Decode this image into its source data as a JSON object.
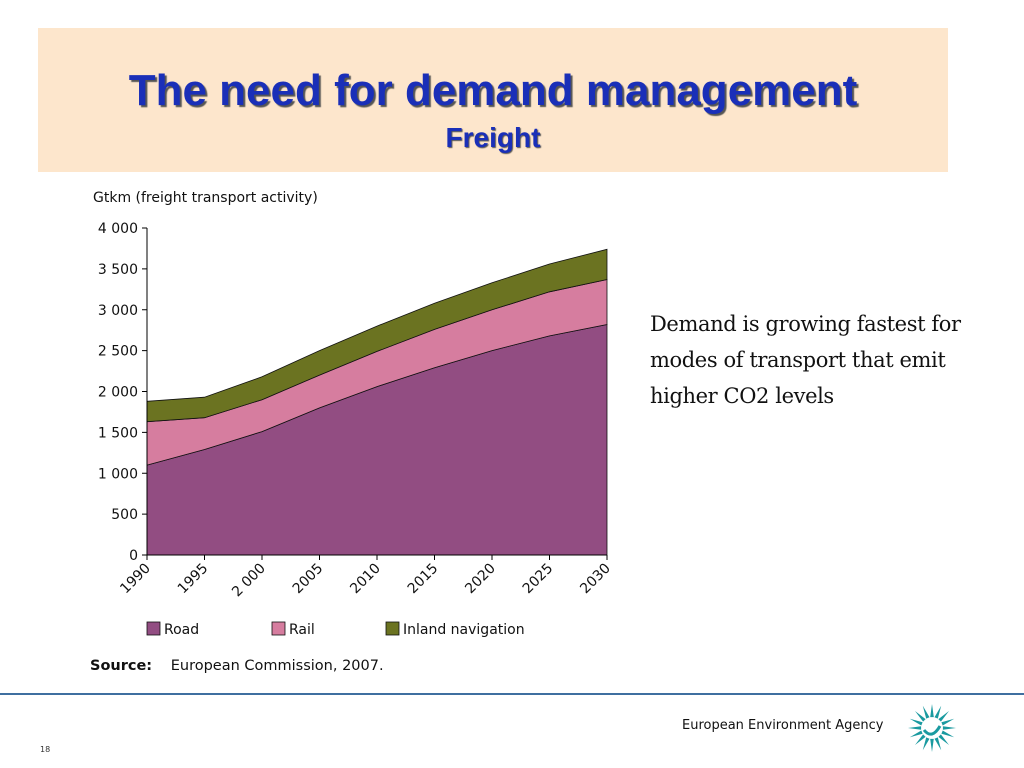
{
  "slide": {
    "title": "The need for demand management",
    "subtitle": "Freight",
    "side_text": "Demand is growing fastest for modes of transport that emit higher CO2 levels",
    "source_label": "Source:",
    "source_text": "European Commission, 2007.",
    "agency": "European Environment Agency",
    "page_number": "18"
  },
  "colors": {
    "title": "#1a2fb8",
    "title_band": "#fde6cc",
    "road": "#924d82",
    "rail": "#d67d9f",
    "inland": "#6b7321",
    "logo": "#1a9aa0"
  },
  "chart_data": {
    "type": "area",
    "stacked": true,
    "ylabel": "Gtkm (freight transport activity)",
    "x": [
      1990,
      1995,
      2000,
      2005,
      2010,
      2015,
      2020,
      2025,
      2030
    ],
    "x_tick_labels": [
      "1990",
      "1995",
      "2 000",
      "2005",
      "2010",
      "2015",
      "2020",
      "2025",
      "2030"
    ],
    "y_ticks": [
      0,
      500,
      1000,
      1500,
      2000,
      2500,
      3000,
      3500,
      4000
    ],
    "y_tick_labels": [
      "0",
      "500",
      "1 000",
      "1 500",
      "2 000",
      "2 500",
      "3 000",
      "3 500",
      "4 000"
    ],
    "ylim": [
      0,
      4000
    ],
    "grid": false,
    "legend": "bottom",
    "series": [
      {
        "name": "Road",
        "values": [
          1100,
          1290,
          1510,
          1800,
          2060,
          2290,
          2500,
          2680,
          2820
        ],
        "color": "#924d82"
      },
      {
        "name": "Rail",
        "values": [
          530,
          390,
          390,
          400,
          430,
          470,
          500,
          540,
          550
        ],
        "color": "#d67d9f"
      },
      {
        "name": "Inland navigation",
        "values": [
          250,
          250,
          280,
          300,
          310,
          320,
          330,
          340,
          370
        ],
        "color": "#6b7321"
      }
    ]
  }
}
